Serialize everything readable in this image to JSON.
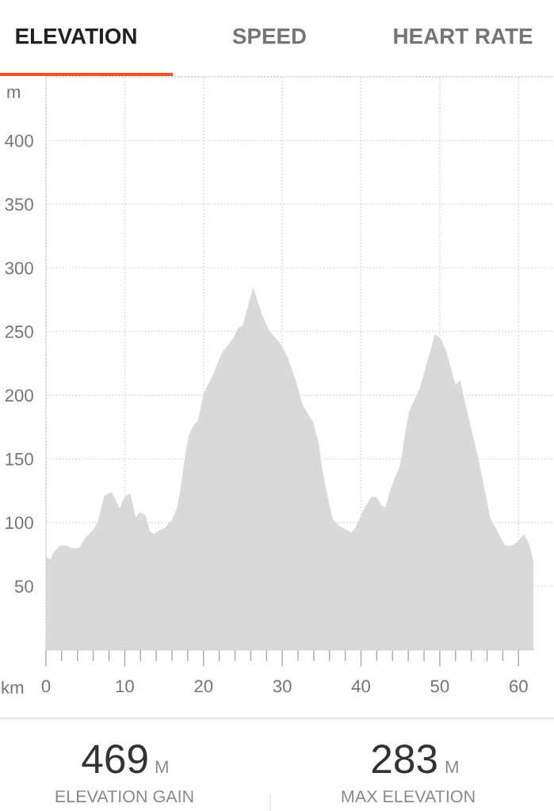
{
  "chart_data": {
    "type": "area",
    "title": "ELEVATION",
    "xlabel": "km",
    "ylabel": "m",
    "annotations": [
      "SPEED",
      "HEART RATE",
      "469",
      "M",
      "ELEVATION GAIN",
      "283",
      "M",
      "MAX ELEVATION"
    ],
    "x": [
      0,
      0.6,
      0.9,
      1.8,
      2.6,
      3.2,
      4.2,
      4.9,
      6.1,
      6.6,
      7.4,
      8.3,
      9.4,
      9.9,
      10.7,
      11.4,
      11.9,
      12.6,
      13.2,
      13.7,
      14.5,
      15.1,
      16.0,
      16.6,
      17.0,
      17.6,
      18.1,
      18.7,
      19.3,
      20.0,
      21.2,
      22.3,
      23.3,
      23.9,
      24.4,
      25.0,
      26.3,
      27.5,
      28.4,
      29.7,
      30.6,
      31.7,
      32.6,
      33.9,
      34.6,
      35.1,
      35.6,
      36.4,
      37.1,
      38.8,
      39.3,
      40.3,
      41.3,
      42.0,
      42.6,
      43.1,
      43.8,
      45.0,
      45.6,
      46.1,
      47.5,
      48.2,
      49.4,
      50.2,
      50.9,
      52.0,
      52.6,
      53.4,
      54.9,
      56.4,
      57.4,
      58.3,
      59.2,
      59.9,
      60.7,
      61.4,
      61.9
    ],
    "values": [
      73,
      71,
      76,
      82,
      82,
      80,
      80,
      87,
      95,
      101,
      121,
      124,
      111,
      120,
      123,
      104,
      108,
      106,
      93,
      91,
      94,
      96,
      102,
      111,
      123,
      150,
      168,
      176,
      180,
      201,
      216,
      233,
      241,
      246,
      253,
      255,
      285,
      262,
      250,
      241,
      231,
      212,
      192,
      179,
      163,
      141,
      125,
      103,
      98,
      92,
      96,
      110,
      120,
      120,
      113,
      112,
      127,
      146,
      170,
      187,
      206,
      222,
      248,
      244,
      233,
      208,
      212,
      189,
      150,
      104,
      92,
      82,
      82,
      85,
      91,
      82,
      69
    ],
    "color": "#d9d9d9",
    "xlim": [
      0,
      64.5
    ],
    "ylim": [
      0,
      450
    ],
    "xticks": [
      0,
      {
        "value": 2,
        "label": null
      },
      {
        "value": 4,
        "label": null
      },
      {
        "value": 6,
        "label": null
      },
      {
        "value": 8,
        "label": null
      },
      10,
      {
        "value": 12,
        "label": null
      },
      {
        "value": 14,
        "label": null
      },
      {
        "value": 16,
        "label": null
      },
      {
        "value": 18,
        "label": null
      },
      20,
      {
        "value": 22,
        "label": null
      },
      {
        "value": 24,
        "label": null
      },
      {
        "value": 26,
        "label": null
      },
      {
        "value": 28,
        "label": null
      },
      30,
      {
        "value": 32,
        "label": null
      },
      {
        "value": 34,
        "label": null
      },
      {
        "value": 36,
        "label": null
      },
      {
        "value": 38,
        "label": null
      },
      40,
      {
        "value": 42,
        "label": null
      },
      {
        "value": 44,
        "label": null
      },
      {
        "value": 46,
        "label": null
      },
      {
        "value": 48,
        "label": null
      },
      50,
      {
        "value": 52,
        "label": null
      },
      {
        "value": 54,
        "label": null
      },
      {
        "value": 56,
        "label": null
      },
      {
        "value": 58,
        "label": null
      },
      60
    ],
    "yticks": [
      50,
      100,
      150,
      200,
      250,
      300,
      350,
      400
    ],
    "grid": true
  }
}
